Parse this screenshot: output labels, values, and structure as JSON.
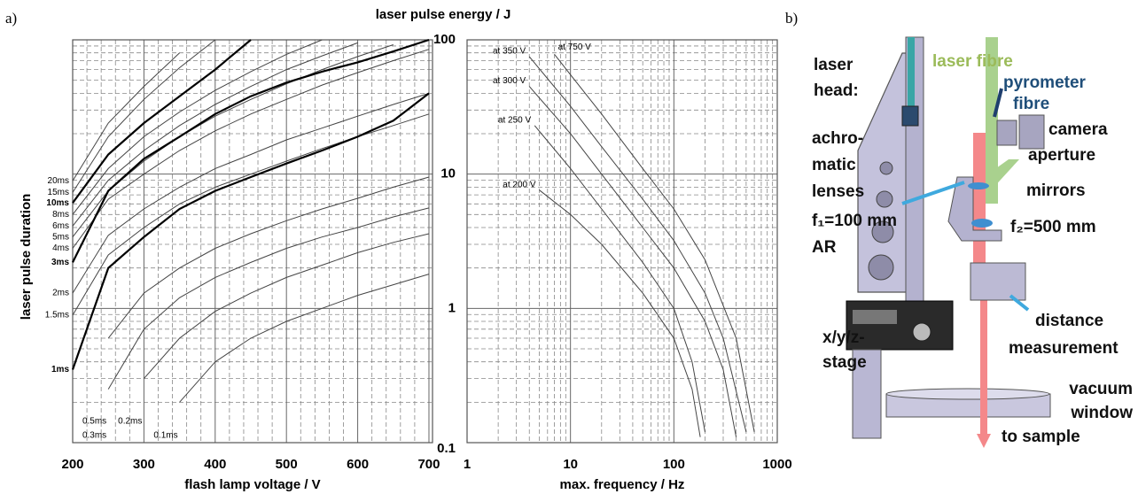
{
  "panel_labels": [
    "a)",
    "b)"
  ],
  "chart_data": [
    {
      "type": "line",
      "ylabel": "laser pulse energy / J",
      "xlabel": "flash lamp voltage / V",
      "legend_title": "laser pulse duration",
      "x": [
        200,
        250,
        300,
        350,
        400,
        450,
        500,
        550,
        600,
        650,
        700
      ],
      "xlim": [
        200,
        705
      ],
      "xticks": [
        200,
        300,
        400,
        500,
        600,
        700
      ],
      "xticks_minor": [
        220,
        240,
        260,
        280,
        320,
        340,
        360,
        380,
        420,
        440,
        460,
        480,
        520,
        540,
        560,
        580,
        620,
        640,
        660,
        680
      ],
      "ylim": [
        0.1,
        100
      ],
      "yticks": [
        0.1,
        1,
        10,
        100
      ],
      "yticks_minor": [
        0.2,
        0.3,
        0.4,
        0.5,
        0.6,
        0.7,
        0.8,
        0.9,
        2,
        3,
        4,
        5,
        6,
        7,
        8,
        9,
        20,
        30,
        40,
        50,
        60,
        70,
        80,
        90
      ],
      "log_y": true,
      "grid": true,
      "series": [
        {
          "name": "20ms",
          "color": "#444444",
          "line_width": 1,
          "values": [
            8.9,
            24,
            45,
            80,
            null,
            null,
            null,
            null,
            null,
            null,
            null
          ]
        },
        {
          "name": "15ms",
          "color": "#444444",
          "line_width": 1,
          "values": [
            7.3,
            19,
            36,
            62,
            100,
            null,
            null,
            null,
            null,
            null,
            null
          ]
        },
        {
          "name": "10ms",
          "color": "#000000",
          "line_width": 2.2,
          "values": [
            6.1,
            14,
            24,
            38,
            60,
            100,
            null,
            null,
            null,
            null,
            null
          ]
        },
        {
          "name": "8ms",
          "color": "#444444",
          "line_width": 1,
          "values": [
            5.0,
            11,
            19,
            29,
            42,
            58,
            78,
            100,
            null,
            null,
            null
          ]
        },
        {
          "name": "6ms",
          "color": "#444444",
          "line_width": 1,
          "values": [
            4.1,
            9,
            15,
            23,
            33,
            45,
            60,
            76,
            95,
            null,
            null
          ]
        },
        {
          "name": "5ms",
          "color": "#444444",
          "line_width": 1,
          "values": [
            3.4,
            7.5,
            12.5,
            19,
            27,
            36,
            47,
            60,
            75,
            92,
            null
          ]
        },
        {
          "name": "4ms",
          "color": "#444444",
          "line_width": 1,
          "values": [
            2.8,
            6.5,
            10,
            15,
            21,
            28,
            36,
            46,
            57,
            70,
            85
          ]
        },
        {
          "name": "3ms",
          "color": "#000000",
          "line_width": 2.2,
          "values": [
            2.2,
            7.5,
            13,
            19,
            28,
            38,
            48,
            58,
            68,
            82,
            100
          ]
        },
        {
          "name": "2ms",
          "color": "#444444",
          "line_width": 1,
          "values": [
            1.3,
            3.5,
            5.5,
            8,
            11,
            14,
            18,
            22,
            27,
            33,
            40
          ]
        },
        {
          "name": "1.5ms",
          "color": "#444444",
          "line_width": 1,
          "values": [
            0.89,
            2.5,
            4,
            6,
            8,
            10,
            12.5,
            15.5,
            19,
            23,
            28
          ]
        },
        {
          "name": "1ms",
          "color": "#000000",
          "line_width": 2.2,
          "values": [
            0.35,
            2.0,
            3.4,
            5.5,
            7.5,
            9.5,
            12,
            15,
            19,
            25,
            40
          ]
        },
        {
          "name": "0.5ms",
          "color": "#444444",
          "line_width": 1,
          "values": [
            null,
            0.6,
            1.3,
            2.0,
            2.8,
            3.6,
            4.5,
            5.5,
            6.6,
            8,
            9.5
          ]
        },
        {
          "name": "0.3ms",
          "color": "#444444",
          "line_width": 1,
          "values": [
            null,
            0.25,
            0.7,
            1.2,
            1.7,
            2.2,
            2.8,
            3.4,
            4.0,
            4.8,
            5.6
          ]
        },
        {
          "name": "0.2ms",
          "color": "#444444",
          "line_width": 1,
          "values": [
            null,
            null,
            0.3,
            0.6,
            0.95,
            1.3,
            1.7,
            2.1,
            2.6,
            3.1,
            3.6
          ]
        },
        {
          "name": "0.1ms",
          "color": "#444444",
          "line_width": 1,
          "values": [
            null,
            null,
            null,
            0.2,
            0.4,
            0.6,
            0.8,
            1.0,
            1.25,
            1.5,
            1.8
          ]
        }
      ]
    },
    {
      "type": "line",
      "xlabel": "max. frequency / Hz",
      "log_x": true,
      "log_y": true,
      "grid": true,
      "xlim": [
        1,
        1000
      ],
      "xticks": [
        1,
        10,
        100,
        1000
      ],
      "xticks_minor": [
        2,
        3,
        4,
        5,
        6,
        7,
        8,
        9,
        20,
        30,
        40,
        50,
        60,
        70,
        80,
        90,
        200,
        300,
        400,
        500,
        600,
        700,
        800,
        900
      ],
      "ylim": [
        0.1,
        100
      ],
      "yticks": [
        0.1,
        1,
        10,
        100
      ],
      "yticks_minor": [
        0.2,
        0.3,
        0.4,
        0.5,
        0.6,
        0.7,
        0.8,
        0.9,
        2,
        3,
        4,
        5,
        6,
        7,
        8,
        9,
        20,
        30,
        40,
        50,
        60,
        70,
        80,
        90
      ],
      "series": [
        {
          "name": "at 750 V",
          "color": "#444444",
          "x": [
            7,
            10,
            20,
            50,
            100,
            200,
            400,
            600
          ],
          "values": [
            78,
            55,
            28,
            11,
            5.5,
            2.3,
            0.6,
            0.12
          ]
        },
        {
          "name": "at 350 V",
          "color": "#444444",
          "x": [
            4,
            10,
            20,
            50,
            100,
            200,
            300,
            500
          ],
          "values": [
            75,
            32,
            16,
            6.5,
            3.2,
            1.3,
            0.6,
            0.12
          ]
        },
        {
          "name": "at 300 V",
          "color": "#444444",
          "x": [
            4,
            10,
            20,
            50,
            100,
            200,
            300,
            400
          ],
          "values": [
            45,
            20,
            10,
            4,
            2,
            0.8,
            0.35,
            0.11
          ]
        },
        {
          "name": "at 250 V",
          "color": "#444444",
          "x": [
            4.5,
            10,
            20,
            50,
            100,
            150,
            200
          ],
          "values": [
            23,
            11,
            5.5,
            2.2,
            1.0,
            0.4,
            0.12
          ]
        },
        {
          "name": "at 200 V",
          "color": "#444444",
          "x": [
            5,
            10,
            20,
            50,
            100,
            150,
            180
          ],
          "values": [
            7.6,
            5,
            3,
            1.3,
            0.6,
            0.25,
            0.11
          ]
        }
      ]
    }
  ],
  "diagram": {
    "labels": {
      "head": [
        "laser",
        "head:"
      ],
      "laser_fibre": "laser fibre",
      "pyrometer_fibre": [
        "pyrometer",
        "fibre"
      ],
      "camera": "camera",
      "aperture": "aperture",
      "mirrors": "mirrors",
      "lenses": [
        "achro-",
        "matic",
        "lenses",
        "f₁=100 mm",
        "AR"
      ],
      "f2": "f₂=500 mm",
      "distance": [
        "distance",
        "measurement"
      ],
      "stage": [
        "x/y/z-",
        "stage"
      ],
      "window": [
        "vacuum",
        "window"
      ],
      "to_sample": "to sample"
    }
  }
}
